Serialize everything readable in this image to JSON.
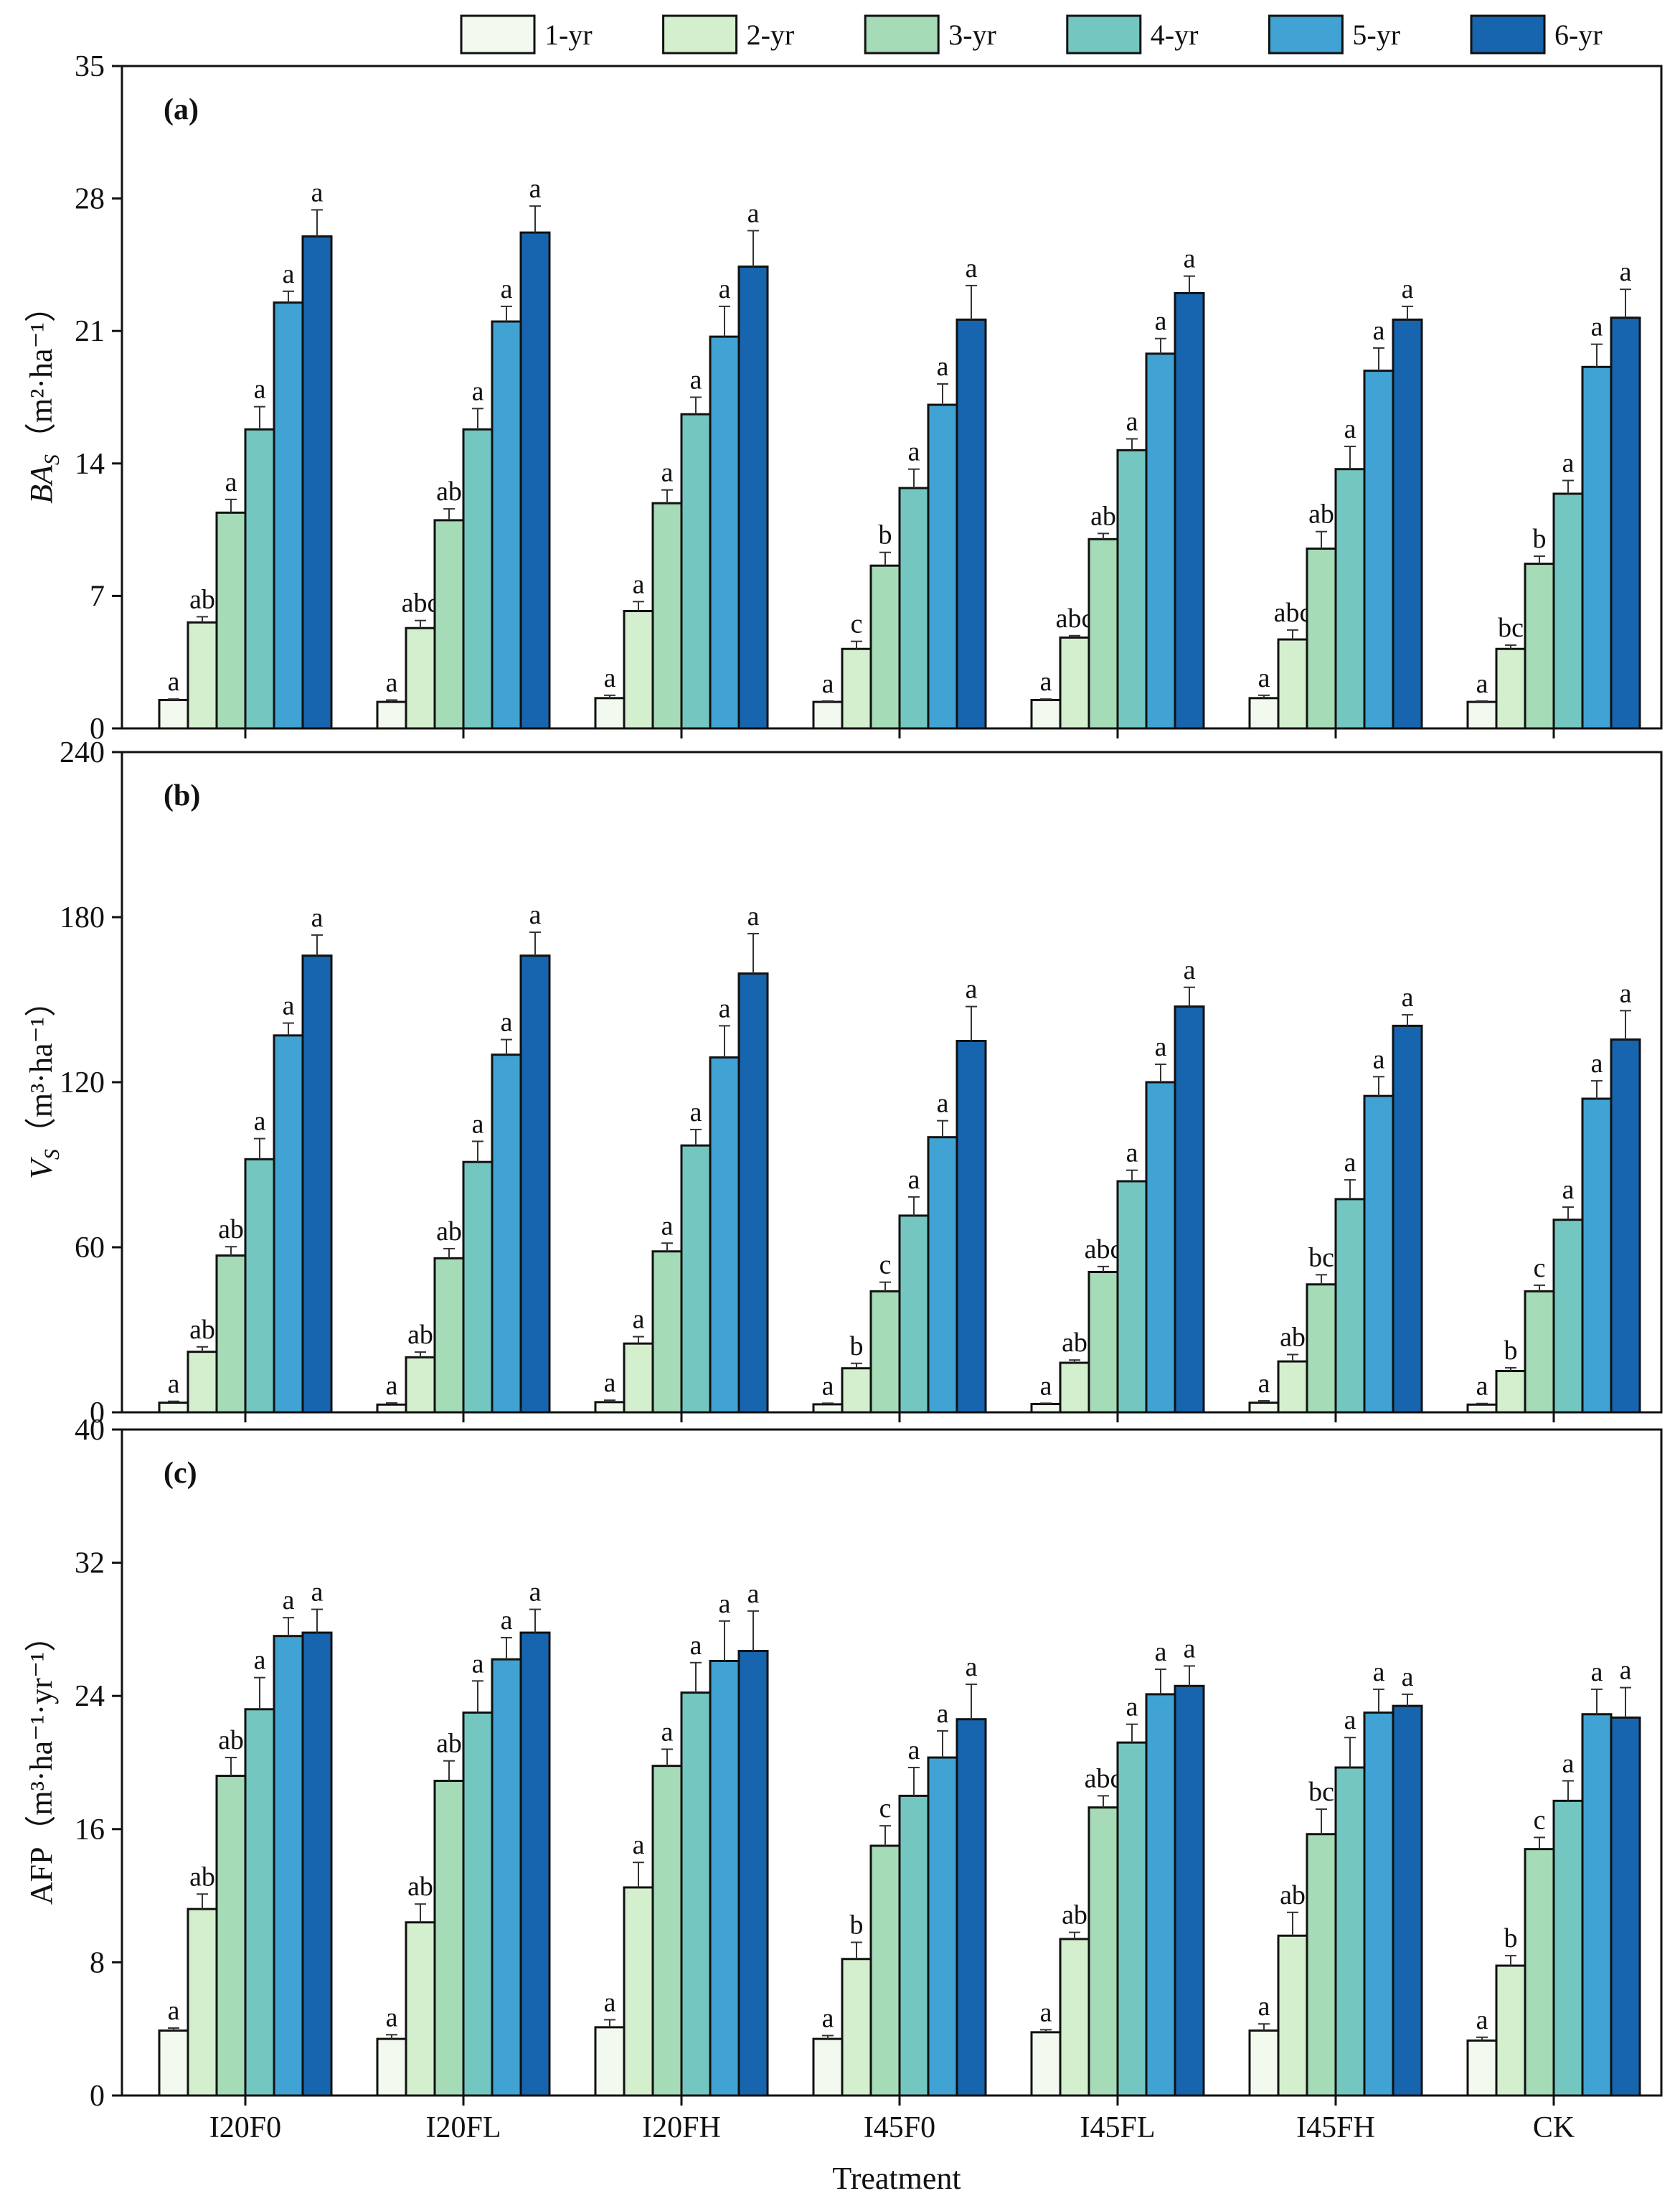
{
  "chart_data": [
    {
      "type": "bar",
      "panel": "(a)",
      "ylabel_main": "BA",
      "ylabel_sub": "S",
      "ylabel_unit": "（m²·ha⁻¹）",
      "ylim": [
        0,
        35
      ],
      "yticks": [
        0,
        7,
        14,
        21,
        28,
        35
      ],
      "categories": [
        "I20F0",
        "I20FL",
        "I20FH",
        "I45F0",
        "I45FL",
        "I45FH",
        "CK"
      ],
      "series": [
        {
          "name": "1-yr",
          "values": [
            1.5,
            1.4,
            1.6,
            1.4,
            1.5,
            1.6,
            1.4
          ],
          "errors": [
            0.05,
            0.1,
            0.15,
            0.05,
            0.05,
            0.15,
            0.05
          ],
          "labels": [
            "a",
            "a",
            "a",
            "a",
            "a",
            "a",
            "a"
          ]
        },
        {
          "name": "2-yr",
          "values": [
            5.6,
            5.3,
            6.2,
            4.2,
            4.8,
            4.7,
            4.2
          ],
          "errors": [
            0.3,
            0.4,
            0.5,
            0.4,
            0.1,
            0.5,
            0.2
          ],
          "labels": [
            "ab",
            "abc",
            "a",
            "c",
            "abc",
            "abc",
            "bc"
          ]
        },
        {
          "name": "3-yr",
          "values": [
            11.4,
            11.0,
            11.9,
            8.6,
            10.0,
            9.5,
            8.7
          ],
          "errors": [
            0.7,
            0.6,
            0.7,
            0.7,
            0.3,
            0.9,
            0.4
          ],
          "labels": [
            "a",
            "ab",
            "a",
            "b",
            "ab",
            "ab",
            "b"
          ]
        },
        {
          "name": "4-yr",
          "values": [
            15.8,
            15.8,
            16.6,
            12.7,
            14.7,
            13.7,
            12.4
          ],
          "errors": [
            1.2,
            1.1,
            0.9,
            1.0,
            0.6,
            1.2,
            0.7
          ],
          "labels": [
            "a",
            "a",
            "a",
            "a",
            "a",
            "a",
            "a"
          ]
        },
        {
          "name": "5-yr",
          "values": [
            22.5,
            21.5,
            20.7,
            17.1,
            19.8,
            18.9,
            19.1
          ],
          "errors": [
            0.6,
            0.8,
            1.6,
            1.1,
            0.8,
            1.2,
            1.2
          ],
          "labels": [
            "a",
            "a",
            "a",
            "a",
            "a",
            "a",
            "a"
          ]
        },
        {
          "name": "6-yr",
          "values": [
            26.0,
            26.2,
            24.4,
            21.6,
            23.0,
            21.6,
            21.7
          ],
          "errors": [
            1.4,
            1.4,
            1.9,
            1.8,
            0.9,
            0.7,
            1.5
          ],
          "labels": [
            "a",
            "a",
            "a",
            "a",
            "a",
            "a",
            "a"
          ]
        }
      ]
    },
    {
      "type": "bar",
      "panel": "(b)",
      "ylabel_main": "V",
      "ylabel_sub": "S",
      "ylabel_unit": "（m³·ha⁻¹）",
      "ylim": [
        0,
        240
      ],
      "yticks": [
        0,
        60,
        120,
        180,
        240
      ],
      "categories": [
        "I20F0",
        "I20FL",
        "I20FH",
        "I45F0",
        "I45FL",
        "I45FH",
        "CK"
      ],
      "series": [
        {
          "name": "1-yr",
          "values": [
            3.5,
            2.8,
            3.7,
            2.9,
            3.0,
            3.5,
            2.8
          ],
          "errors": [
            0.5,
            0.6,
            0.7,
            0.4,
            0.3,
            0.7,
            0.4
          ],
          "labels": [
            "a",
            "a",
            "a",
            "a",
            "a",
            "a",
            "a"
          ]
        },
        {
          "name": "2-yr",
          "values": [
            22,
            20,
            25,
            16,
            18,
            18.5,
            15
          ],
          "errors": [
            1.8,
            1.9,
            2.5,
            1.8,
            1.0,
            2.5,
            1.2
          ],
          "labels": [
            "ab",
            "ab",
            "a",
            "b",
            "ab",
            "ab",
            "b"
          ]
        },
        {
          "name": "3-yr",
          "values": [
            57,
            56,
            58.5,
            44,
            51,
            46.5,
            44
          ],
          "errors": [
            3.2,
            3.5,
            3.0,
            3.3,
            2.0,
            3.5,
            2.2
          ],
          "labels": [
            "ab",
            "ab",
            "a",
            "c",
            "abc",
            "bc",
            "c"
          ]
        },
        {
          "name": "4-yr",
          "values": [
            92,
            91,
            97,
            71.5,
            84,
            77.5,
            70
          ],
          "errors": [
            7.5,
            7.5,
            5.8,
            6.8,
            4.0,
            7.0,
            4.6
          ],
          "labels": [
            "a",
            "a",
            "a",
            "a",
            "a",
            "a",
            "a"
          ]
        },
        {
          "name": "5-yr",
          "values": [
            137,
            130,
            129,
            100,
            120,
            115,
            114
          ],
          "errors": [
            4.5,
            5.5,
            11.5,
            6.0,
            6.5,
            7.0,
            6.5
          ],
          "labels": [
            "a",
            "a",
            "a",
            "a",
            "a",
            "a",
            "a"
          ]
        },
        {
          "name": "6-yr",
          "values": [
            166,
            166,
            159.5,
            135,
            147.5,
            140.5,
            135.5
          ],
          "errors": [
            7.5,
            8.5,
            14.5,
            12.5,
            7.0,
            4.0,
            10.5
          ],
          "labels": [
            "a",
            "a",
            "a",
            "a",
            "a",
            "a",
            "a"
          ]
        }
      ]
    },
    {
      "type": "bar",
      "panel": "(c)",
      "ylabel_main": "AFP",
      "ylabel_unit": "（m³·ha⁻¹·yr⁻¹）",
      "xlabel": "Treatment",
      "ylim": [
        0,
        40
      ],
      "yticks": [
        0,
        8,
        16,
        24,
        32,
        40
      ],
      "categories": [
        "I20F0",
        "I20FL",
        "I20FH",
        "I45F0",
        "I45FL",
        "I45FH",
        "CK"
      ],
      "series": [
        {
          "name": "1-yr",
          "values": [
            3.9,
            3.4,
            4.1,
            3.4,
            3.8,
            3.9,
            3.3
          ],
          "errors": [
            0.15,
            0.25,
            0.45,
            0.2,
            0.15,
            0.4,
            0.2
          ],
          "labels": [
            "a",
            "a",
            "a",
            "a",
            "a",
            "a",
            "a"
          ]
        },
        {
          "name": "2-yr",
          "values": [
            11.2,
            10.4,
            12.5,
            8.2,
            9.4,
            9.6,
            7.8
          ],
          "errors": [
            0.9,
            1.1,
            1.5,
            1.0,
            0.4,
            1.4,
            0.6
          ],
          "labels": [
            "ab",
            "ab",
            "a",
            "b",
            "ab",
            "ab",
            "b"
          ]
        },
        {
          "name": "3-yr",
          "values": [
            19.2,
            18.9,
            19.8,
            15.0,
            17.3,
            15.7,
            14.8
          ],
          "errors": [
            1.1,
            1.2,
            1.0,
            1.2,
            0.7,
            1.5,
            0.7
          ],
          "labels": [
            "ab",
            "ab",
            "a",
            "c",
            "abc",
            "bc",
            "c"
          ]
        },
        {
          "name": "4-yr",
          "values": [
            23.2,
            23.0,
            24.2,
            18.0,
            21.2,
            19.7,
            17.7
          ],
          "errors": [
            1.9,
            1.9,
            1.8,
            1.7,
            1.1,
            1.8,
            1.2
          ],
          "labels": [
            "a",
            "a",
            "a",
            "a",
            "a",
            "a",
            "a"
          ]
        },
        {
          "name": "5-yr",
          "values": [
            27.6,
            26.2,
            26.1,
            20.3,
            24.1,
            23.0,
            22.9
          ],
          "errors": [
            1.1,
            1.3,
            2.4,
            1.6,
            1.5,
            1.4,
            1.5
          ],
          "labels": [
            "a",
            "a",
            "a",
            "a",
            "a",
            "a",
            "a"
          ]
        },
        {
          "name": "6-yr",
          "values": [
            27.8,
            27.8,
            26.7,
            22.6,
            24.6,
            23.4,
            22.7
          ],
          "errors": [
            1.4,
            1.4,
            2.4,
            2.1,
            1.2,
            0.7,
            1.8
          ],
          "labels": [
            "a",
            "a",
            "a",
            "a",
            "a",
            "a",
            "a"
          ]
        }
      ]
    }
  ],
  "legend": {
    "placement": "top-center",
    "items": [
      {
        "name": "1-yr",
        "color": "#f2f9ee"
      },
      {
        "name": "2-yr",
        "color": "#d4efce"
      },
      {
        "name": "3-yr",
        "color": "#a5dbb6"
      },
      {
        "name": "4-yr",
        "color": "#74c7c1"
      },
      {
        "name": "5-yr",
        "color": "#40a3d4"
      },
      {
        "name": "6-yr",
        "color": "#1665ae"
      }
    ]
  }
}
